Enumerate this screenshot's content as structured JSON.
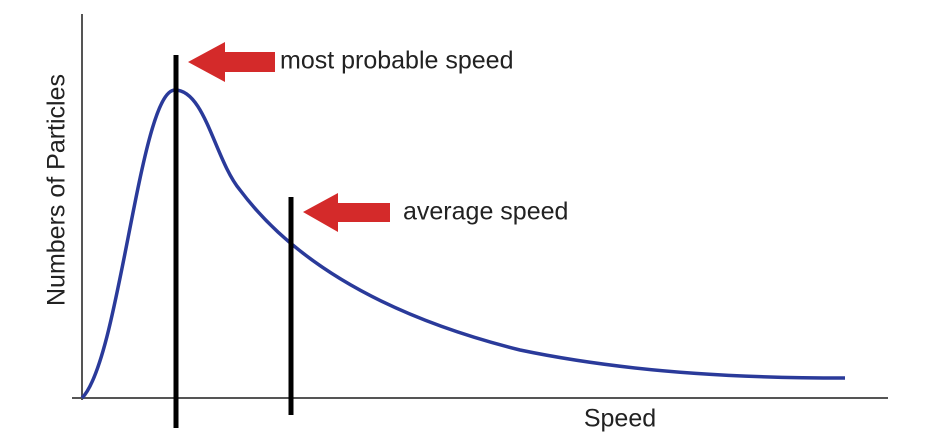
{
  "y_axis": {
    "label": "Numbers of Particles"
  },
  "x_axis": {
    "label": "Speed"
  },
  "annotations": [
    {
      "label": "most probable speed"
    },
    {
      "label": "average speed"
    }
  ]
}
